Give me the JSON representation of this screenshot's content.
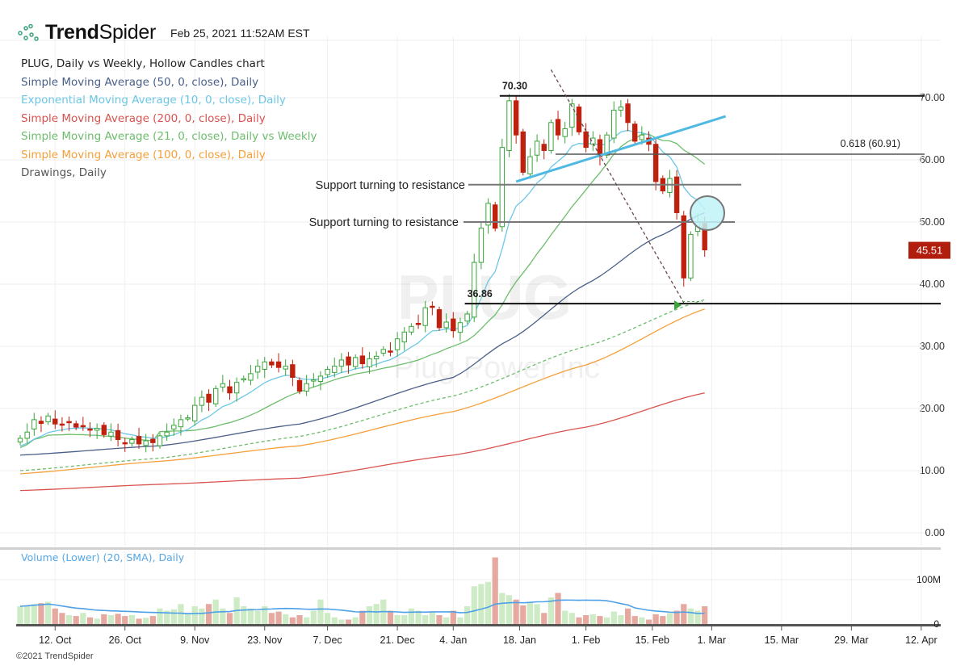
{
  "header": {
    "brand_bold": "Trend",
    "brand_light": "Spider",
    "timestamp": "Feb 25, 2021 11:52AM EST"
  },
  "legend": {
    "title": "PLUG, Daily vs Weekly, Hollow Candles chart",
    "items": [
      {
        "label": "Simple Moving Average (50, 0, close), Daily",
        "color": "#4a5f88"
      },
      {
        "label": "Exponential Moving Average (10, 0, close), Daily",
        "color": "#6cc7e6"
      },
      {
        "label": "Simple Moving Average (200, 0, close), Daily",
        "color": "#d9534f"
      },
      {
        "label": "Simple Moving Average (21, 0, close), Daily vs Weekly",
        "color": "#6dbd6d"
      },
      {
        "label": "Simple Moving Average (100, 0, close), Daily",
        "color": "#f5a03a"
      },
      {
        "label": "Drawings, Daily",
        "color": "#555555"
      }
    ]
  },
  "volume_label": "Volume (Lower) (20, SMA), Daily",
  "footer": "©2021 TrendSpider",
  "watermark": {
    "symbol": "PLUG",
    "name": "Plug Power Inc"
  },
  "chart_data": {
    "type": "candlestick",
    "symbol": "PLUG",
    "y_ticks": [
      "0.00",
      "10.00",
      "20.00",
      "30.00",
      "40.00",
      "50.00",
      "60.00",
      "70.00"
    ],
    "ylim": [
      0,
      75
    ],
    "last_price": "45.51",
    "x_ticks": [
      {
        "label": "12. Oct",
        "i": 5
      },
      {
        "label": "26. Oct",
        "i": 15
      },
      {
        "label": "9. Nov",
        "i": 25
      },
      {
        "label": "23. Nov",
        "i": 35
      },
      {
        "label": "7. Dec",
        "i": 44
      },
      {
        "label": "21. Dec",
        "i": 54
      },
      {
        "label": "4. Jan",
        "i": 62
      },
      {
        "label": "18. Jan",
        "i": 71.5
      },
      {
        "label": "1. Feb",
        "i": 81
      },
      {
        "label": "15. Feb",
        "i": 90.5
      },
      {
        "label": "1. Mar",
        "i": 99
      },
      {
        "label": "15. Mar",
        "i": 109
      },
      {
        "label": "29. Mar",
        "i": 119
      },
      {
        "label": "12. Apr",
        "i": 129
      }
    ],
    "close": [
      15.2,
      16.2,
      18.2,
      17.6,
      18.8,
      17.5,
      17.4,
      17.8,
      17.0,
      17.2,
      16.5,
      16.8,
      15.8,
      16.2,
      15.0,
      14.4,
      15.0,
      14.3,
      14.8,
      14.5,
      15.6,
      16.2,
      17.3,
      18.2,
      18.5,
      20.5,
      21.8,
      21.0,
      23.2,
      24.0,
      22.5,
      24.2,
      24.8,
      25.6,
      26.8,
      27.5,
      27.0,
      26.6,
      26.8,
      25.0,
      22.8,
      24.0,
      24.6,
      25.2,
      26.3,
      26.8,
      27.8,
      27.0,
      28.2,
      27.2,
      28.0,
      28.4,
      29.5,
      29.2,
      31.2,
      32.3,
      33.2,
      33.6,
      36.2,
      36.4,
      33.0,
      33.9,
      32.5,
      33.8,
      35.2,
      43.5,
      49.0,
      53.0,
      49.0,
      62.0,
      69.5,
      64.0,
      58.0,
      60.5,
      63.0,
      61.5,
      66.0,
      64.0,
      65.0,
      69.0,
      64.5,
      62.0,
      63.5,
      60.5,
      64.0,
      68.0,
      68.5,
      66.0,
      63.0,
      64.0,
      62.5,
      56.5,
      55.0,
      57.0,
      51.5,
      41.0,
      48.0,
      50.0,
      45.51
    ],
    "volume_millions": [
      40,
      42,
      45,
      47,
      50,
      35,
      25,
      20,
      18,
      25,
      15,
      12,
      22,
      20,
      23,
      18,
      20,
      12,
      14,
      18,
      35,
      30,
      33,
      45,
      25,
      40,
      35,
      45,
      55,
      35,
      25,
      60,
      40,
      35,
      30,
      40,
      25,
      28,
      22,
      15,
      20,
      15,
      30,
      55,
      25,
      15,
      10,
      10,
      15,
      30,
      40,
      45,
      55,
      30,
      20,
      20,
      35,
      30,
      20,
      28,
      20,
      15,
      30,
      15,
      40,
      85,
      90,
      95,
      150,
      70,
      65,
      55,
      42,
      50,
      45,
      25,
      60,
      70,
      30,
      25,
      15,
      20,
      22,
      18,
      15,
      28,
      20,
      35,
      18,
      15,
      10,
      22,
      18,
      25,
      30,
      45,
      35,
      30,
      40
    ],
    "volume_ticks": [
      "0",
      "100M"
    ],
    "indicators": {
      "sma50": [
        [
          0,
          12.5
        ],
        [
          20,
          14
        ],
        [
          40,
          17.5
        ],
        [
          62,
          25
        ],
        [
          70,
          31
        ],
        [
          81,
          40
        ],
        [
          91,
          47.5
        ],
        [
          98,
          51.5
        ]
      ],
      "sma100": [
        [
          0,
          9.5
        ],
        [
          20,
          11.5
        ],
        [
          40,
          14
        ],
        [
          62,
          19.5
        ],
        [
          81,
          27
        ],
        [
          98,
          36
        ]
      ],
      "sma200": [
        [
          0,
          6.8
        ],
        [
          20,
          7.8
        ],
        [
          40,
          8.8
        ],
        [
          62,
          12.5
        ],
        [
          81,
          17
        ],
        [
          98,
          22.5
        ]
      ],
      "sma21_weekly": [
        [
          0,
          10
        ],
        [
          20,
          12
        ],
        [
          40,
          15.5
        ],
        [
          62,
          22
        ],
        [
          81,
          30
        ],
        [
          98,
          37.5
        ]
      ]
    },
    "drawings": {
      "level_high": {
        "label": "70.30",
        "price": 70.3,
        "from": 69
      },
      "level_low": {
        "label": "36.86",
        "price": 36.86,
        "from": 64
      },
      "support1": {
        "label": "Support turning to resistance",
        "price": 56
      },
      "support2": {
        "label": "Support turning to resistance",
        "price": 50
      },
      "fib": {
        "label": "0.618 (60.91)",
        "price": 60.91,
        "from": 77
      },
      "trendline": {
        "from": [
          71,
          56.5
        ],
        "to": [
          101,
          67
        ]
      },
      "dotted": {
        "from": [
          76,
          74.5
        ],
        "to": [
          95,
          37
        ]
      }
    }
  }
}
